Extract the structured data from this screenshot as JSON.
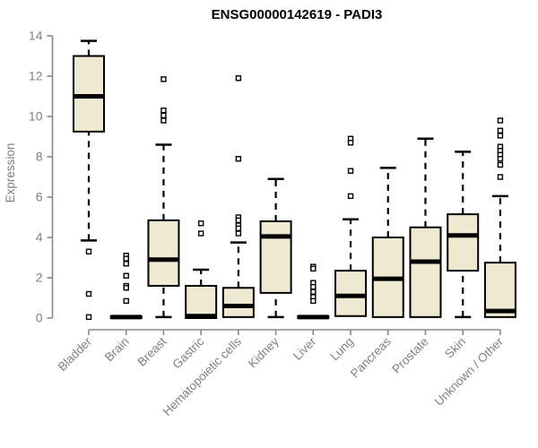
{
  "chart_data": {
    "type": "boxplot",
    "title": "ENSG00000142619 - PADI3",
    "ylabel": "Expression",
    "xlabel": "",
    "ylim": [
      0,
      14
    ],
    "yticks": [
      0,
      2,
      4,
      6,
      8,
      10,
      12,
      14
    ],
    "grid": false,
    "legend": "none",
    "colors": {
      "box_fill": "#EFE9D1",
      "box_stroke": "#000000",
      "median": "#000000",
      "axis": "#888888",
      "tick_label": "#808080",
      "title": "#000000",
      "background": "#ffffff"
    },
    "categories": [
      "Bladder",
      "Brain",
      "Breast",
      "Gastric",
      "Hematopoietic cells",
      "Kidney",
      "Liver",
      "Lung",
      "Pancreas",
      "Prostate",
      "Skin",
      "Unknown / Other"
    ],
    "series": [
      {
        "category": "Bladder",
        "whisker_low": 3.85,
        "q1": 9.25,
        "median": 11.0,
        "q3": 13.0,
        "whisker_high": 13.75,
        "outliers": [
          3.3,
          1.2,
          0.05
        ]
      },
      {
        "category": "Brain",
        "whisker_low": 0,
        "q1": 0,
        "median": 0.05,
        "q3": 0.1,
        "whisker_high": 0.1,
        "outliers": [
          3.1,
          2.95,
          2.7,
          2.1,
          1.6,
          1.5,
          0.85
        ]
      },
      {
        "category": "Breast",
        "whisker_low": 0.05,
        "q1": 1.6,
        "median": 2.9,
        "q3": 4.85,
        "whisker_high": 8.6,
        "outliers": [
          11.85,
          10.3,
          10.05,
          9.8
        ]
      },
      {
        "category": "Gastric",
        "whisker_low": 0,
        "q1": 0,
        "median": 0.1,
        "q3": 1.6,
        "whisker_high": 2.4,
        "outliers": [
          4.7,
          4.2
        ]
      },
      {
        "category": "Hematopoietic cells",
        "whisker_low": 0,
        "q1": 0.05,
        "median": 0.6,
        "q3": 1.5,
        "whisker_high": 3.75,
        "outliers": [
          11.9,
          7.9,
          5.0,
          4.85,
          4.6,
          4.45,
          4.2
        ]
      },
      {
        "category": "Kidney",
        "whisker_low": 0.05,
        "q1": 1.25,
        "median": 4.05,
        "q3": 4.8,
        "whisker_high": 6.9,
        "outliers": []
      },
      {
        "category": "Liver",
        "whisker_low": 0,
        "q1": 0,
        "median": 0.05,
        "q3": 0.1,
        "whisker_high": 0.1,
        "outliers": [
          2.55,
          2.45,
          1.75,
          1.55,
          1.3,
          1.05,
          0.85
        ]
      },
      {
        "category": "Lung",
        "whisker_low": 0,
        "q1": 0.1,
        "median": 1.1,
        "q3": 2.35,
        "whisker_high": 4.9,
        "outliers": [
          8.9,
          8.7,
          7.3,
          6.05
        ]
      },
      {
        "category": "Pancreas",
        "whisker_low": 0,
        "q1": 0.05,
        "median": 1.95,
        "q3": 4.0,
        "whisker_high": 7.45,
        "outliers": []
      },
      {
        "category": "Prostate",
        "whisker_low": 0,
        "q1": 0.05,
        "median": 2.8,
        "q3": 4.5,
        "whisker_high": 8.9,
        "outliers": []
      },
      {
        "category": "Skin",
        "whisker_low": 0.05,
        "q1": 2.35,
        "median": 4.1,
        "q3": 5.15,
        "whisker_high": 8.25,
        "outliers": []
      },
      {
        "category": "Unknown / Other",
        "whisker_low": 0,
        "q1": 0.05,
        "median": 0.35,
        "q3": 2.75,
        "whisker_high": 6.05,
        "outliers": [
          9.8,
          9.3,
          9.05,
          8.5,
          8.3,
          8.1,
          7.9,
          7.6,
          7.0
        ]
      }
    ]
  }
}
